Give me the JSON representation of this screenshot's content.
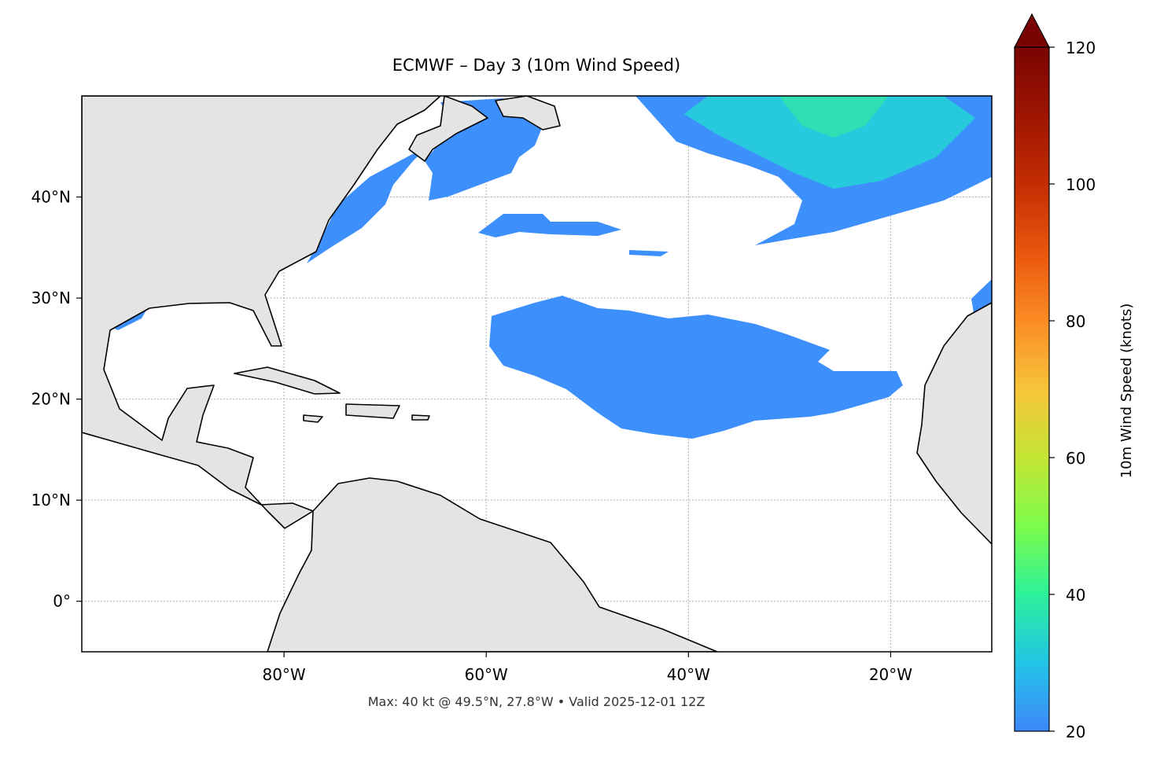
{
  "map": {
    "title": "ECMWF – Day 3 (10m Wind Speed)",
    "footer": "Max: 40 kt @ 49.5°N, 27.8°W • Valid 2025-12-01 12Z",
    "xlim": [
      -100,
      -10
    ],
    "ylim": [
      -5,
      50
    ],
    "xticks": [
      {
        "value": -80,
        "label": "80°W"
      },
      {
        "value": -60,
        "label": "60°W"
      },
      {
        "value": -40,
        "label": "40°W"
      },
      {
        "value": -20,
        "label": "20°W"
      }
    ],
    "yticks": [
      {
        "value": 0,
        "label": "0°"
      },
      {
        "value": 10,
        "label": "10°N"
      },
      {
        "value": 20,
        "label": "20°N"
      },
      {
        "value": 30,
        "label": "30°N"
      },
      {
        "value": 40,
        "label": "40°N"
      }
    ],
    "grid": true,
    "colorbar": {
      "label": "10m Wind Speed (knots)",
      "lim": [
        20,
        120
      ],
      "ticks": [
        20,
        40,
        60,
        80,
        100,
        120
      ]
    }
  }
}
